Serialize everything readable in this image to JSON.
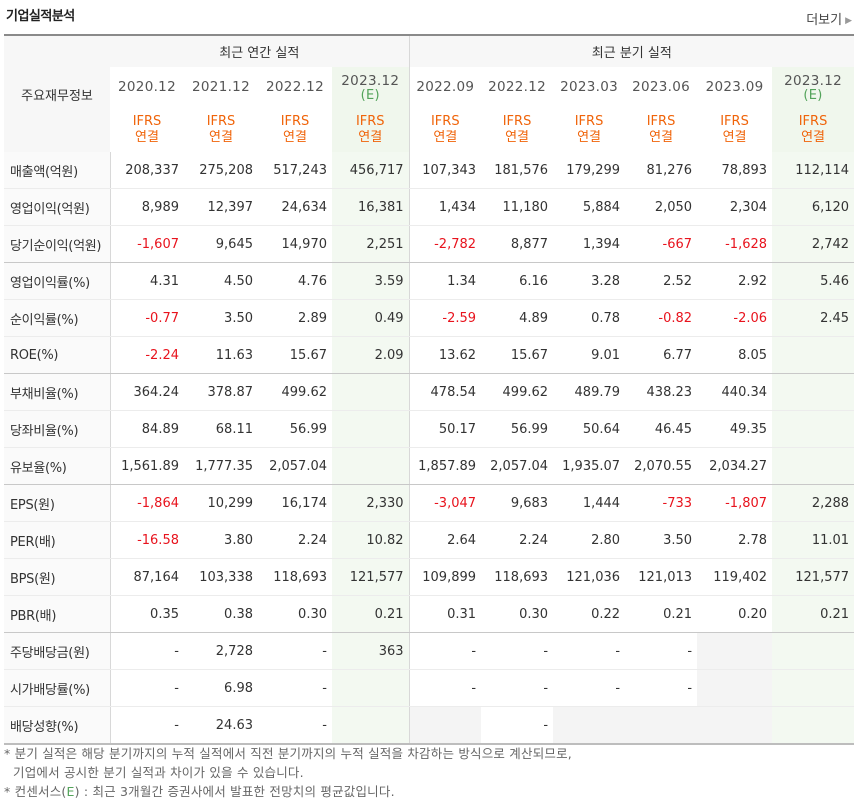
{
  "header": {
    "title": "기업실적분석",
    "more_label": "더보기"
  },
  "table": {
    "corner_label": "주요재무정보",
    "group_annual": "최근 연간 실적",
    "group_quarter": "최근 분기 실적",
    "periods": [
      "2020.12",
      "2021.12",
      "2022.12",
      "2023.12",
      "2022.09",
      "2022.12",
      "2023.03",
      "2023.06",
      "2023.09",
      "2023.12"
    ],
    "period_estimate_mark": "(E)",
    "ifrs_line1": "IFRS",
    "ifrs_line2": "연결",
    "rows": [
      {
        "label": "매출액(억원)",
        "values": [
          "208,337",
          "275,208",
          "517,243",
          "456,717",
          "107,343",
          "181,576",
          "179,299",
          "81,276",
          "78,893",
          "112,114"
        ]
      },
      {
        "label": "영업이익(억원)",
        "values": [
          "8,989",
          "12,397",
          "24,634",
          "16,381",
          "1,434",
          "11,180",
          "5,884",
          "2,050",
          "2,304",
          "6,120"
        ]
      },
      {
        "label": "당기순이익(억원)",
        "values": [
          "-1,607",
          "9,645",
          "14,970",
          "2,251",
          "-2,782",
          "8,877",
          "1,394",
          "-667",
          "-1,628",
          "2,742"
        ]
      },
      {
        "label": "영업이익률(%)",
        "values": [
          "4.31",
          "4.50",
          "4.76",
          "3.59",
          "1.34",
          "6.16",
          "3.28",
          "2.52",
          "2.92",
          "5.46"
        ]
      },
      {
        "label": "순이익률(%)",
        "values": [
          "-0.77",
          "3.50",
          "2.89",
          "0.49",
          "-2.59",
          "4.89",
          "0.78",
          "-0.82",
          "-2.06",
          "2.45"
        ]
      },
      {
        "label": "ROE(%)",
        "values": [
          "-2.24",
          "11.63",
          "15.67",
          "2.09",
          "13.62",
          "15.67",
          "9.01",
          "6.77",
          "8.05",
          ""
        ]
      },
      {
        "label": "부채비율(%)",
        "values": [
          "364.24",
          "378.87",
          "499.62",
          "",
          "478.54",
          "499.62",
          "489.79",
          "438.23",
          "440.34",
          ""
        ]
      },
      {
        "label": "당좌비율(%)",
        "values": [
          "84.89",
          "68.11",
          "56.99",
          "",
          "50.17",
          "56.99",
          "50.64",
          "46.45",
          "49.35",
          ""
        ]
      },
      {
        "label": "유보율(%)",
        "values": [
          "1,561.89",
          "1,777.35",
          "2,057.04",
          "",
          "1,857.89",
          "2,057.04",
          "1,935.07",
          "2,070.55",
          "2,034.27",
          ""
        ]
      },
      {
        "label": "EPS(원)",
        "values": [
          "-1,864",
          "10,299",
          "16,174",
          "2,330",
          "-3,047",
          "9,683",
          "1,444",
          "-733",
          "-1,807",
          "2,288"
        ]
      },
      {
        "label": "PER(배)",
        "values": [
          "-16.58",
          "3.80",
          "2.24",
          "10.82",
          "2.64",
          "2.24",
          "2.80",
          "3.50",
          "2.78",
          "11.01"
        ]
      },
      {
        "label": "BPS(원)",
        "values": [
          "87,164",
          "103,338",
          "118,693",
          "121,577",
          "109,899",
          "118,693",
          "121,036",
          "121,013",
          "119,402",
          "121,577"
        ]
      },
      {
        "label": "PBR(배)",
        "values": [
          "0.35",
          "0.38",
          "0.30",
          "0.21",
          "0.31",
          "0.30",
          "0.22",
          "0.21",
          "0.20",
          "0.21"
        ]
      },
      {
        "label": "주당배당금(원)",
        "values": [
          "-",
          "2,728",
          "-",
          "363",
          "-",
          "-",
          "-",
          "-",
          "",
          ""
        ]
      },
      {
        "label": "시가배당률(%)",
        "values": [
          "-",
          "6.98",
          "-",
          "",
          "-",
          "-",
          "-",
          "-",
          "",
          ""
        ]
      },
      {
        "label": "배당성향(%)",
        "values": [
          "-",
          "24.63",
          "-",
          "",
          "",
          "-",
          "",
          "",
          "",
          ""
        ]
      }
    ]
  },
  "notes": {
    "line1": "* 분기 실적은 해당 분기까지의 누적 실적에서 직전 분기까지의 누적 실적을 차감하는 방식으로 계산되므로,",
    "line2": "기업에서 공시한 분기 실적과 차이가 있을 수 있습니다.",
    "line3_prefix": "* 컨센서스(",
    "line3_mark": "E",
    "line3_suffix": ") : 최근 3개월간 증권사에서 발표한 전망치의 평균값입니다."
  },
  "colors": {
    "negative": "#e8131d",
    "ifrs": "#f0640a",
    "estimate": "#53a35a",
    "estimate_bg": "#f3f9f1"
  }
}
